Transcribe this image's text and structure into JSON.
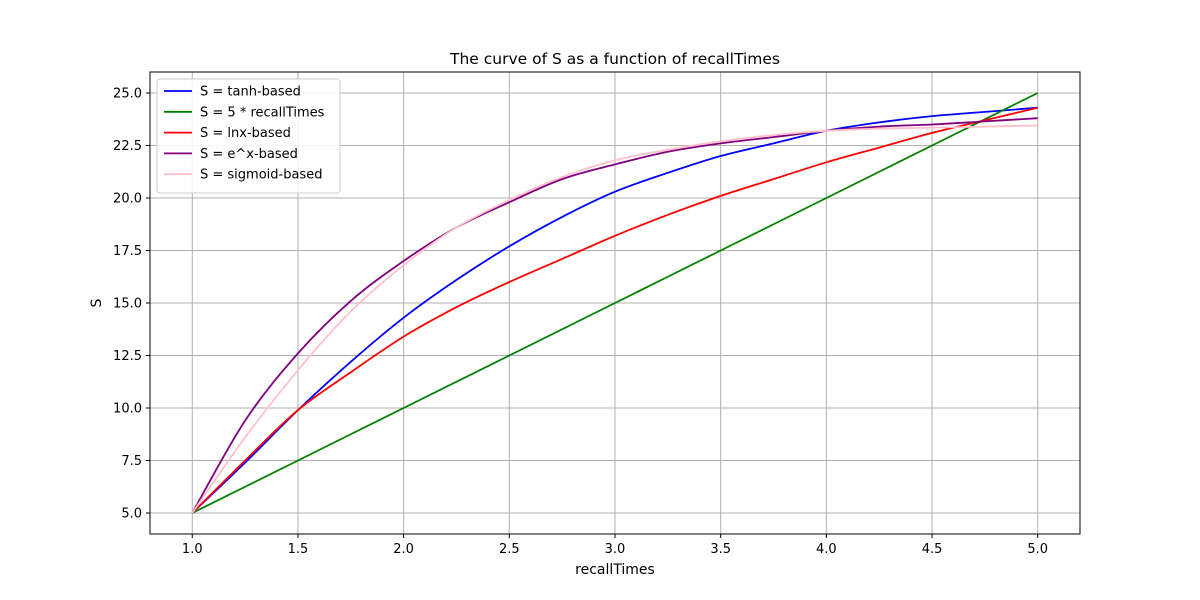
{
  "chart_data": {
    "type": "line",
    "title": "The curve of S as a function of recallTimes",
    "xlabel": "recallTimes",
    "ylabel": "S",
    "xlim": [
      0.8,
      5.2
    ],
    "ylim": [
      4.0,
      26.0
    ],
    "xticks": [
      "1.0",
      "1.5",
      "2.0",
      "2.5",
      "3.0",
      "3.5",
      "4.0",
      "4.5",
      "5.0"
    ],
    "yticks": [
      "5.0",
      "7.5",
      "10.0",
      "12.5",
      "15.0",
      "17.5",
      "20.0",
      "22.5",
      "25.0"
    ],
    "grid": true,
    "legend_position": "upper-left",
    "x": [
      1.0,
      1.25,
      1.5,
      1.75,
      2.0,
      2.25,
      2.5,
      2.75,
      3.0,
      3.25,
      3.5,
      3.75,
      4.0,
      4.25,
      4.5,
      4.75,
      5.0
    ],
    "series": [
      {
        "name": "S = tanh-based",
        "color": "#0000ff",
        "values": [
          5.0,
          7.4,
          9.9,
          12.2,
          14.3,
          16.1,
          17.7,
          19.1,
          20.3,
          21.2,
          22.0,
          22.6,
          23.2,
          23.6,
          23.9,
          24.1,
          24.3
        ]
      },
      {
        "name": "S = 5 * recallTimes",
        "color": "#008000",
        "values": [
          5.0,
          6.25,
          7.5,
          8.75,
          10.0,
          11.25,
          12.5,
          13.75,
          15.0,
          16.25,
          17.5,
          18.75,
          20.0,
          21.25,
          22.5,
          23.75,
          25.0
        ]
      },
      {
        "name": "S = lnx-based",
        "color": "#ff0000",
        "values": [
          5.0,
          7.5,
          9.9,
          11.7,
          13.4,
          14.8,
          16.0,
          17.1,
          18.2,
          19.2,
          20.1,
          20.9,
          21.7,
          22.4,
          23.1,
          23.7,
          24.3
        ]
      },
      {
        "name": "S = e^x-based",
        "color": "#800080",
        "values": [
          5.0,
          9.4,
          12.6,
          15.1,
          17.0,
          18.6,
          19.8,
          20.9,
          21.6,
          22.2,
          22.6,
          22.9,
          23.2,
          23.4,
          23.5,
          23.65,
          23.8
        ]
      },
      {
        "name": "S = sigmoid-based",
        "color": "#ffc0cb",
        "values": [
          5.0,
          8.6,
          11.8,
          14.6,
          16.8,
          18.6,
          19.9,
          21.0,
          21.8,
          22.3,
          22.7,
          23.0,
          23.2,
          23.3,
          23.35,
          23.4,
          23.45
        ]
      }
    ]
  }
}
